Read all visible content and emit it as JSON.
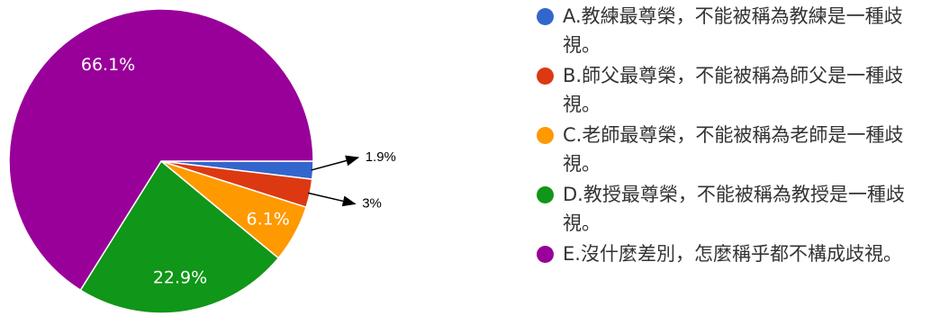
{
  "chart_data": {
    "type": "pie",
    "slices": [
      {
        "label": "A.教練最尊榮，不能被稱為教練是一種歧視。",
        "value": 1.9,
        "display": "1.9%",
        "color": "#3366cc"
      },
      {
        "label": "B.師父最尊榮，不能被稱為師父是一種歧視。",
        "value": 3,
        "display": "3%",
        "color": "#dc3912"
      },
      {
        "label": "C.老師最尊榮，不能被稱為老師是一種歧視。",
        "value": 6.1,
        "display": "6.1%",
        "color": "#ff9900"
      },
      {
        "label": "D.教授最尊榮，不能被稱為教授是一種歧視。",
        "value": 22.9,
        "display": "22.9%",
        "color": "#109618"
      },
      {
        "label": "E.沒什麼差別，怎麼稱乎都不構成歧視。",
        "value": 66.1,
        "display": "66.1%",
        "color": "#990099"
      }
    ],
    "legend_position": "right"
  }
}
